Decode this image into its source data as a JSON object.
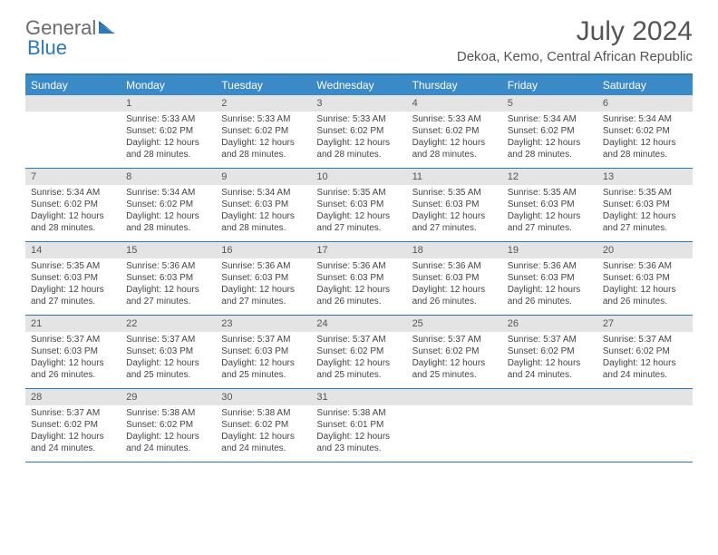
{
  "brand": {
    "part1": "General",
    "part2": "Blue"
  },
  "title": "July 2024",
  "location": "Dekoa, Kemo, Central African Republic",
  "columns": [
    "Sunday",
    "Monday",
    "Tuesday",
    "Wednesday",
    "Thursday",
    "Friday",
    "Saturday"
  ],
  "colors": {
    "header_bg": "#3a8ac8",
    "rule": "#2a7ab9",
    "daynum_bg": "#e4e4e4",
    "text": "#444444"
  },
  "weeks": [
    [
      {
        "n": "",
        "lines": []
      },
      {
        "n": "1",
        "lines": [
          "Sunrise: 5:33 AM",
          "Sunset: 6:02 PM",
          "Daylight: 12 hours and 28 minutes."
        ]
      },
      {
        "n": "2",
        "lines": [
          "Sunrise: 5:33 AM",
          "Sunset: 6:02 PM",
          "Daylight: 12 hours and 28 minutes."
        ]
      },
      {
        "n": "3",
        "lines": [
          "Sunrise: 5:33 AM",
          "Sunset: 6:02 PM",
          "Daylight: 12 hours and 28 minutes."
        ]
      },
      {
        "n": "4",
        "lines": [
          "Sunrise: 5:33 AM",
          "Sunset: 6:02 PM",
          "Daylight: 12 hours and 28 minutes."
        ]
      },
      {
        "n": "5",
        "lines": [
          "Sunrise: 5:34 AM",
          "Sunset: 6:02 PM",
          "Daylight: 12 hours and 28 minutes."
        ]
      },
      {
        "n": "6",
        "lines": [
          "Sunrise: 5:34 AM",
          "Sunset: 6:02 PM",
          "Daylight: 12 hours and 28 minutes."
        ]
      }
    ],
    [
      {
        "n": "7",
        "lines": [
          "Sunrise: 5:34 AM",
          "Sunset: 6:02 PM",
          "Daylight: 12 hours and 28 minutes."
        ]
      },
      {
        "n": "8",
        "lines": [
          "Sunrise: 5:34 AM",
          "Sunset: 6:02 PM",
          "Daylight: 12 hours and 28 minutes."
        ]
      },
      {
        "n": "9",
        "lines": [
          "Sunrise: 5:34 AM",
          "Sunset: 6:03 PM",
          "Daylight: 12 hours and 28 minutes."
        ]
      },
      {
        "n": "10",
        "lines": [
          "Sunrise: 5:35 AM",
          "Sunset: 6:03 PM",
          "Daylight: 12 hours and 27 minutes."
        ]
      },
      {
        "n": "11",
        "lines": [
          "Sunrise: 5:35 AM",
          "Sunset: 6:03 PM",
          "Daylight: 12 hours and 27 minutes."
        ]
      },
      {
        "n": "12",
        "lines": [
          "Sunrise: 5:35 AM",
          "Sunset: 6:03 PM",
          "Daylight: 12 hours and 27 minutes."
        ]
      },
      {
        "n": "13",
        "lines": [
          "Sunrise: 5:35 AM",
          "Sunset: 6:03 PM",
          "Daylight: 12 hours and 27 minutes."
        ]
      }
    ],
    [
      {
        "n": "14",
        "lines": [
          "Sunrise: 5:35 AM",
          "Sunset: 6:03 PM",
          "Daylight: 12 hours and 27 minutes."
        ]
      },
      {
        "n": "15",
        "lines": [
          "Sunrise: 5:36 AM",
          "Sunset: 6:03 PM",
          "Daylight: 12 hours and 27 minutes."
        ]
      },
      {
        "n": "16",
        "lines": [
          "Sunrise: 5:36 AM",
          "Sunset: 6:03 PM",
          "Daylight: 12 hours and 27 minutes."
        ]
      },
      {
        "n": "17",
        "lines": [
          "Sunrise: 5:36 AM",
          "Sunset: 6:03 PM",
          "Daylight: 12 hours and 26 minutes."
        ]
      },
      {
        "n": "18",
        "lines": [
          "Sunrise: 5:36 AM",
          "Sunset: 6:03 PM",
          "Daylight: 12 hours and 26 minutes."
        ]
      },
      {
        "n": "19",
        "lines": [
          "Sunrise: 5:36 AM",
          "Sunset: 6:03 PM",
          "Daylight: 12 hours and 26 minutes."
        ]
      },
      {
        "n": "20",
        "lines": [
          "Sunrise: 5:36 AM",
          "Sunset: 6:03 PM",
          "Daylight: 12 hours and 26 minutes."
        ]
      }
    ],
    [
      {
        "n": "21",
        "lines": [
          "Sunrise: 5:37 AM",
          "Sunset: 6:03 PM",
          "Daylight: 12 hours and 26 minutes."
        ]
      },
      {
        "n": "22",
        "lines": [
          "Sunrise: 5:37 AM",
          "Sunset: 6:03 PM",
          "Daylight: 12 hours and 25 minutes."
        ]
      },
      {
        "n": "23",
        "lines": [
          "Sunrise: 5:37 AM",
          "Sunset: 6:03 PM",
          "Daylight: 12 hours and 25 minutes."
        ]
      },
      {
        "n": "24",
        "lines": [
          "Sunrise: 5:37 AM",
          "Sunset: 6:02 PM",
          "Daylight: 12 hours and 25 minutes."
        ]
      },
      {
        "n": "25",
        "lines": [
          "Sunrise: 5:37 AM",
          "Sunset: 6:02 PM",
          "Daylight: 12 hours and 25 minutes."
        ]
      },
      {
        "n": "26",
        "lines": [
          "Sunrise: 5:37 AM",
          "Sunset: 6:02 PM",
          "Daylight: 12 hours and 24 minutes."
        ]
      },
      {
        "n": "27",
        "lines": [
          "Sunrise: 5:37 AM",
          "Sunset: 6:02 PM",
          "Daylight: 12 hours and 24 minutes."
        ]
      }
    ],
    [
      {
        "n": "28",
        "lines": [
          "Sunrise: 5:37 AM",
          "Sunset: 6:02 PM",
          "Daylight: 12 hours and 24 minutes."
        ]
      },
      {
        "n": "29",
        "lines": [
          "Sunrise: 5:38 AM",
          "Sunset: 6:02 PM",
          "Daylight: 12 hours and 24 minutes."
        ]
      },
      {
        "n": "30",
        "lines": [
          "Sunrise: 5:38 AM",
          "Sunset: 6:02 PM",
          "Daylight: 12 hours and 24 minutes."
        ]
      },
      {
        "n": "31",
        "lines": [
          "Sunrise: 5:38 AM",
          "Sunset: 6:01 PM",
          "Daylight: 12 hours and 23 minutes."
        ]
      },
      {
        "n": "",
        "lines": []
      },
      {
        "n": "",
        "lines": []
      },
      {
        "n": "",
        "lines": []
      }
    ]
  ]
}
